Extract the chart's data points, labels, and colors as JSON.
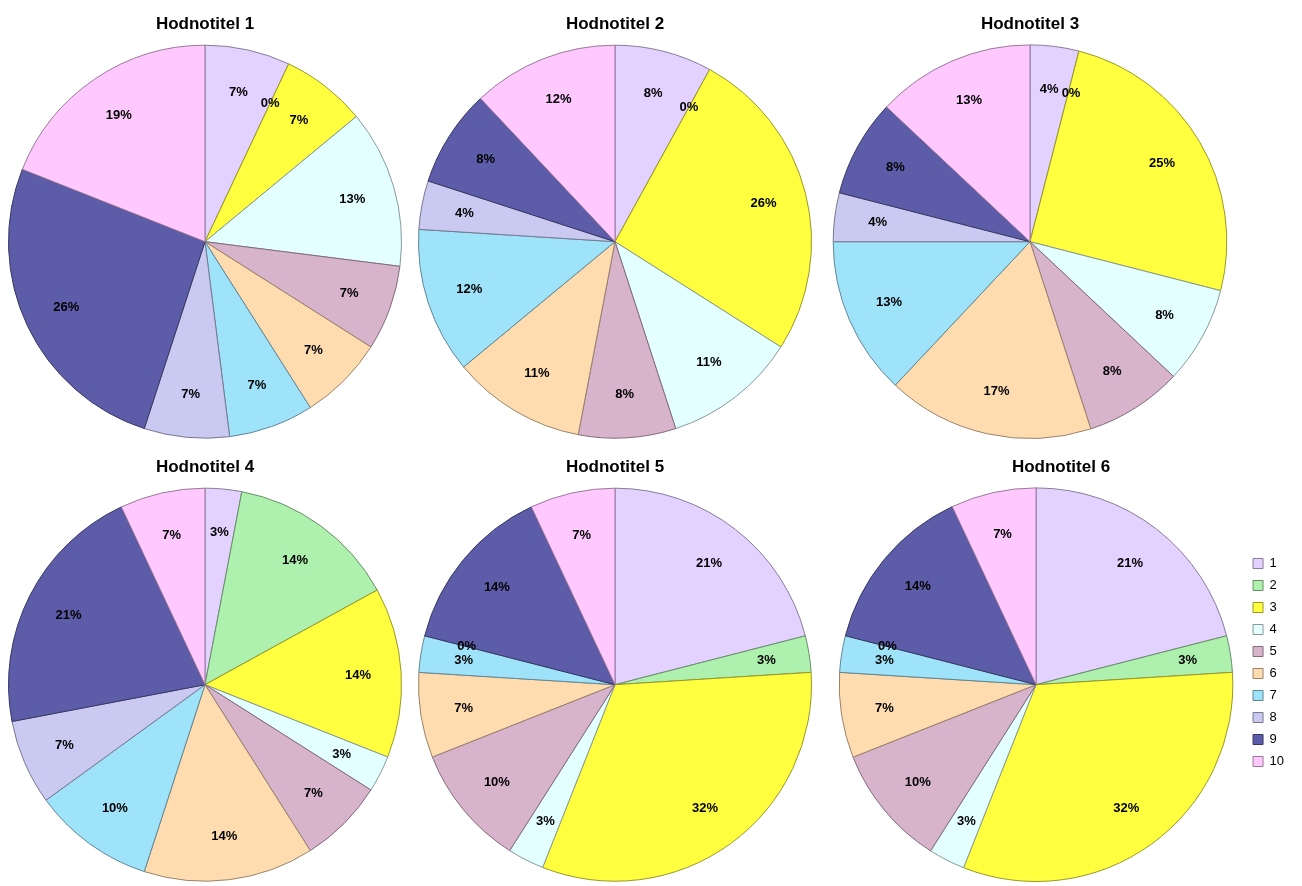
{
  "chart_data": [
    {
      "type": "pie",
      "title": "Hodnotitel 1",
      "categories": [
        null,
        null,
        null,
        null,
        null,
        null,
        null,
        null,
        null,
        null
      ],
      "values": [
        7,
        0,
        7,
        13,
        7,
        7,
        7,
        7,
        26,
        19
      ],
      "value_labels": [
        "7%",
        "0%",
        "7%",
        "13%",
        "7%",
        "7%",
        "7%",
        "7%",
        "26%",
        "19%"
      ],
      "colors": [
        "#e3d1ff",
        "#aef0ae",
        "#ffff40",
        "#e3ffff",
        "#d8b3cc",
        "#ffdcb0",
        "#9fe3fa",
        "#c9c9f2",
        "#5c5ca8",
        "#ffc8ff"
      ]
    },
    {
      "type": "pie",
      "title": "Hodnotitel 2",
      "categories": [
        null,
        null,
        null,
        null,
        null,
        null,
        null,
        null,
        null,
        null
      ],
      "values": [
        8,
        0,
        26,
        11,
        8,
        11,
        12,
        4,
        8,
        12
      ],
      "value_labels": [
        "8%",
        "0%",
        "26%",
        "11%",
        "8%",
        "11%",
        "12%",
        "4%",
        "8%",
        "12%"
      ],
      "colors": [
        "#e3d1ff",
        "#aef0ae",
        "#ffff40",
        "#e3ffff",
        "#d8b3cc",
        "#ffdcb0",
        "#9fe3fa",
        "#c9c9f2",
        "#5c5ca8",
        "#ffc8ff"
      ]
    },
    {
      "type": "pie",
      "title": "Hodnotitel 3",
      "categories": [
        null,
        null,
        null,
        null,
        null,
        null,
        null,
        null,
        null,
        null
      ],
      "values": [
        4,
        0,
        25,
        8,
        8,
        17,
        13,
        4,
        8,
        13
      ],
      "value_labels": [
        "4%",
        "0%",
        "25%",
        "8%",
        "8%",
        "17%",
        "13%",
        "4%",
        "8%",
        "13%"
      ],
      "colors": [
        "#e3d1ff",
        "#aef0ae",
        "#ffff40",
        "#e3ffff",
        "#d8b3cc",
        "#ffdcb0",
        "#9fe3fa",
        "#c9c9f2",
        "#5c5ca8",
        "#ffc8ff"
      ]
    },
    {
      "type": "pie",
      "title": "Hodnotitel 4",
      "categories": [
        null,
        null,
        null,
        null,
        null,
        null,
        null,
        null,
        null,
        null
      ],
      "values": [
        3,
        14,
        14,
        3,
        7,
        14,
        10,
        7,
        21,
        7
      ],
      "value_labels": [
        "3%",
        "14%",
        "14%",
        "3%",
        "7%",
        "14%",
        "10%",
        "7%",
        "21%",
        "7%"
      ],
      "colors": [
        "#e3d1ff",
        "#aef0ae",
        "#ffff40",
        "#e3ffff",
        "#d8b3cc",
        "#ffdcb0",
        "#9fe3fa",
        "#c9c9f2",
        "#5c5ca8",
        "#ffc8ff"
      ]
    },
    {
      "type": "pie",
      "title": "Hodnotitel 5",
      "categories": [
        null,
        null,
        null,
        null,
        null,
        null,
        null,
        null,
        null,
        null
      ],
      "values": [
        21,
        3,
        32,
        3,
        10,
        7,
        3,
        0,
        14,
        7
      ],
      "value_labels": [
        "21%",
        "3%",
        "32%",
        "3%",
        "10%",
        "7%",
        "3%",
        "0%",
        "14%",
        "7%"
      ],
      "colors": [
        "#e3d1ff",
        "#aef0ae",
        "#ffff40",
        "#e3ffff",
        "#d8b3cc",
        "#ffdcb0",
        "#9fe3fa",
        "#c9c9f2",
        "#5c5ca8",
        "#ffc8ff"
      ]
    },
    {
      "type": "pie",
      "title": "Hodnotitel 6",
      "categories": [
        "1",
        "2",
        "3",
        "4",
        "5",
        "6",
        "7",
        "8",
        "9",
        "10"
      ],
      "values": [
        21,
        3,
        32,
        3,
        10,
        7,
        3,
        0,
        14,
        7
      ],
      "value_labels": [
        "21%",
        "3%",
        "32%",
        "3%",
        "10%",
        "7%",
        "3%",
        "0%",
        "14%",
        "7%"
      ],
      "colors": [
        "#e3d1ff",
        "#aef0ae",
        "#ffff40",
        "#e3ffff",
        "#d8b3cc",
        "#ffdcb0",
        "#9fe3fa",
        "#c9c9f2",
        "#5c5ca8",
        "#ffc8ff"
      ],
      "legend": "right"
    }
  ]
}
